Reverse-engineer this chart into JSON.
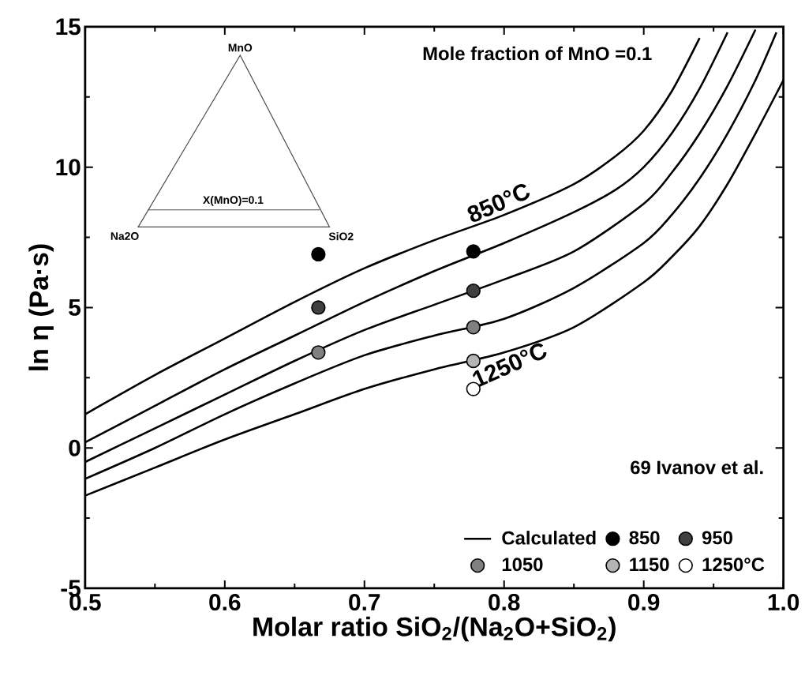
{
  "chart_data": {
    "type": "line",
    "title": "Mole fraction of MnO =0.1",
    "xlabel": "Molar ratio SiO$_{2}$/(Na$_{2}$O+SiO$_{2}$)",
    "ylabel": "ln η (Pa·s)",
    "xlim": [
      0.5,
      1.0
    ],
    "ylim": [
      -5,
      15
    ],
    "xticks": [
      0.5,
      0.6,
      0.7,
      0.8,
      0.9,
      {
        "value": 1.0,
        "label": "1.0"
      }
    ],
    "yticks": [
      -5,
      0,
      5,
      10,
      15
    ],
    "series": [
      {
        "name": "850°C",
        "color": "#000000",
        "x": [
          0.5,
          0.55,
          0.6,
          0.65,
          0.7,
          0.75,
          0.8,
          0.85,
          0.88,
          0.9,
          0.92,
          0.94
        ],
        "values": [
          1.2,
          2.6,
          3.9,
          5.2,
          6.4,
          7.4,
          8.3,
          9.4,
          10.4,
          11.3,
          12.7,
          14.6
        ]
      },
      {
        "color": "#000000",
        "x": [
          0.5,
          0.55,
          0.6,
          0.65,
          0.7,
          0.75,
          0.8,
          0.85,
          0.88,
          0.9,
          0.92,
          0.94,
          0.96
        ],
        "values": [
          0.2,
          1.5,
          2.8,
          4.0,
          5.2,
          6.3,
          7.3,
          8.4,
          9.2,
          10.0,
          11.2,
          12.8,
          14.8
        ]
      },
      {
        "color": "#000000",
        "x": [
          0.5,
          0.55,
          0.6,
          0.65,
          0.7,
          0.75,
          0.8,
          0.85,
          0.9,
          0.92,
          0.94,
          0.96,
          0.98
        ],
        "values": [
          -0.5,
          0.7,
          1.9,
          3.1,
          4.2,
          5.1,
          6.0,
          7.0,
          8.7,
          9.8,
          11.2,
          12.9,
          14.9
        ]
      },
      {
        "color": "#000000",
        "x": [
          0.5,
          0.55,
          0.6,
          0.65,
          0.7,
          0.75,
          0.8,
          0.85,
          0.9,
          0.92,
          0.94,
          0.96,
          0.98,
          0.995
        ],
        "values": [
          -1.1,
          0.0,
          1.2,
          2.3,
          3.3,
          4.0,
          4.6,
          5.7,
          7.3,
          8.3,
          9.6,
          11.2,
          13.1,
          14.8
        ]
      },
      {
        "name": "1250°C",
        "color": "#000000",
        "x": [
          0.5,
          0.55,
          0.6,
          0.65,
          0.7,
          0.75,
          0.8,
          0.85,
          0.9,
          0.92,
          0.94,
          0.96,
          0.98,
          1.0
        ],
        "values": [
          -1.7,
          -0.7,
          0.3,
          1.2,
          2.1,
          2.8,
          3.4,
          4.3,
          5.9,
          6.8,
          7.9,
          9.4,
          11.2,
          13.1
        ]
      },
      {
        "type": "scatter",
        "name": "850",
        "color": "#000000",
        "x": [
          0.667,
          0.778
        ],
        "values": [
          6.9,
          7.0
        ]
      },
      {
        "type": "scatter",
        "name": "950",
        "color": "#404040",
        "x": [
          0.667,
          0.778
        ],
        "values": [
          5.0,
          5.6
        ]
      },
      {
        "type": "scatter",
        "name": "1050",
        "color": "#808080",
        "x": [
          0.667,
          0.778
        ],
        "values": [
          3.4,
          4.3
        ]
      },
      {
        "type": "scatter",
        "name": "1150",
        "color": "#b4b4b4",
        "x": [
          0.778
        ],
        "values": [
          3.1
        ]
      },
      {
        "type": "scatter",
        "name": "1250°C",
        "color": "#ffffff",
        "x": [
          0.778
        ],
        "values": [
          2.1
        ]
      }
    ],
    "legend": "bottom right",
    "legend_title": "69 Ivanov et al.",
    "annotations": [
      "Calculated",
      "MnO",
      "Na2O",
      "SiO2",
      "X(MnO)=0.1"
    ]
  }
}
